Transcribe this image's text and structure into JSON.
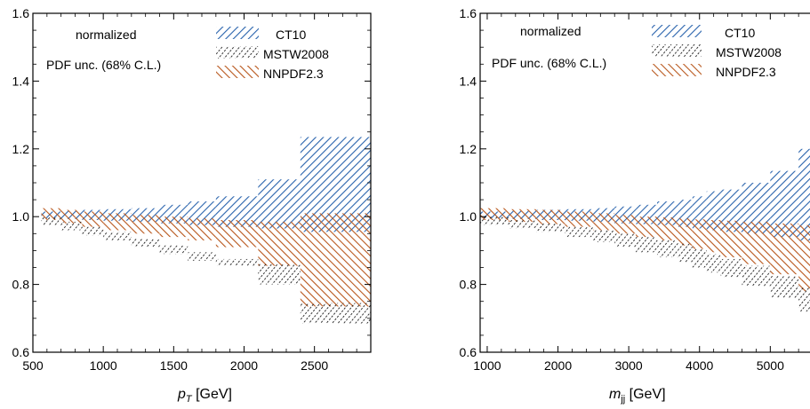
{
  "colors": {
    "CT10": "#2a64ad",
    "MSTW2008": "#000000",
    "NNPDF2.3": "#b8561b"
  },
  "chart_data": [
    {
      "type": "area",
      "xlabel_var": "p",
      "xlabel_sub": "T",
      "xlabel_unit": " [GeV]",
      "xlim": [
        500,
        2900
      ],
      "ylim": [
        0.6,
        1.6
      ],
      "xticks": [
        500,
        1000,
        1500,
        2000,
        2500
      ],
      "yticks": [
        0.6,
        0.8,
        1.0,
        1.2,
        1.4,
        1.6
      ],
      "annotations": [
        "normalized",
        "PDF unc. (68% C.L.)"
      ],
      "legend": [
        "CT10",
        "MSTW2008",
        "NNPDF2.3"
      ],
      "bins": [
        560,
        700,
        850,
        1000,
        1200,
        1400,
        1600,
        1800,
        2100,
        2400,
        2900
      ],
      "series": [
        {
          "name": "CT10",
          "pattern": "ct",
          "low": [
            0.995,
            0.993,
            0.99,
            0.988,
            0.985,
            0.98,
            0.975,
            0.97,
            0.965,
            0.955
          ],
          "high": [
            1.015,
            1.017,
            1.02,
            1.022,
            1.025,
            1.035,
            1.045,
            1.06,
            1.11,
            1.235
          ]
        },
        {
          "name": "MSTW2008",
          "pattern": "mstw",
          "low": [
            0.975,
            0.96,
            0.945,
            0.93,
            0.91,
            0.89,
            0.87,
            0.855,
            0.8,
            0.685
          ],
          "high": [
            1.0,
            0.985,
            0.97,
            0.955,
            0.935,
            0.915,
            0.895,
            0.875,
            0.86,
            0.745
          ]
        },
        {
          "name": "NNPDF2.3",
          "pattern": "nn",
          "low": [
            0.99,
            0.98,
            0.97,
            0.96,
            0.95,
            0.94,
            0.93,
            0.91,
            0.855,
            0.735
          ],
          "high": [
            1.025,
            1.02,
            1.015,
            1.01,
            1.005,
            1.0,
            0.995,
            0.99,
            0.985,
            1.01
          ]
        }
      ]
    },
    {
      "type": "area",
      "xlabel_var": "m",
      "xlabel_sub": "jj",
      "xlabel_unit": " [GeV]",
      "xlim": [
        900,
        5800
      ],
      "ylim": [
        0.6,
        1.6
      ],
      "xticks": [
        1000,
        2000,
        3000,
        4000,
        5000
      ],
      "yticks": [
        0.6,
        0.8,
        1.0,
        1.2,
        1.4,
        1.6
      ],
      "annotations": [
        "normalized",
        "PDF unc. (68% C.L.)"
      ],
      "legend": [
        "CT10",
        "MSTW2008",
        "NNPDF2.3"
      ],
      "bins": [
        900,
        1300,
        1700,
        2100,
        2500,
        2800,
        3100,
        3400,
        3700,
        3900,
        4100,
        4300,
        4600,
        5000,
        5400,
        5800
      ],
      "series": [
        {
          "name": "CT10",
          "pattern": "ct",
          "low": [
            0.995,
            0.993,
            0.99,
            0.988,
            0.985,
            0.98,
            0.978,
            0.975,
            0.97,
            0.965,
            0.96,
            0.955,
            0.95,
            0.94,
            0.93
          ],
          "high": [
            1.015,
            1.017,
            1.02,
            1.022,
            1.025,
            1.03,
            1.035,
            1.045,
            1.05,
            1.06,
            1.075,
            1.08,
            1.1,
            1.135,
            1.2
          ]
        },
        {
          "name": "MSTW2008",
          "pattern": "mstw",
          "low": [
            0.975,
            0.965,
            0.955,
            0.94,
            0.925,
            0.91,
            0.895,
            0.88,
            0.865,
            0.85,
            0.835,
            0.82,
            0.795,
            0.76,
            0.72
          ],
          "high": [
            1.0,
            0.99,
            0.98,
            0.97,
            0.96,
            0.95,
            0.94,
            0.93,
            0.92,
            0.905,
            0.89,
            0.875,
            0.855,
            0.825,
            0.79
          ]
        },
        {
          "name": "NNPDF2.3",
          "pattern": "nn",
          "low": [
            0.99,
            0.985,
            0.978,
            0.97,
            0.96,
            0.95,
            0.94,
            0.93,
            0.915,
            0.905,
            0.895,
            0.88,
            0.86,
            0.83,
            0.78
          ],
          "high": [
            1.025,
            1.022,
            1.02,
            1.015,
            1.01,
            1.005,
            1.0,
            0.998,
            0.995,
            0.992,
            0.99,
            0.988,
            0.985,
            0.98,
            0.975
          ]
        }
      ]
    }
  ]
}
